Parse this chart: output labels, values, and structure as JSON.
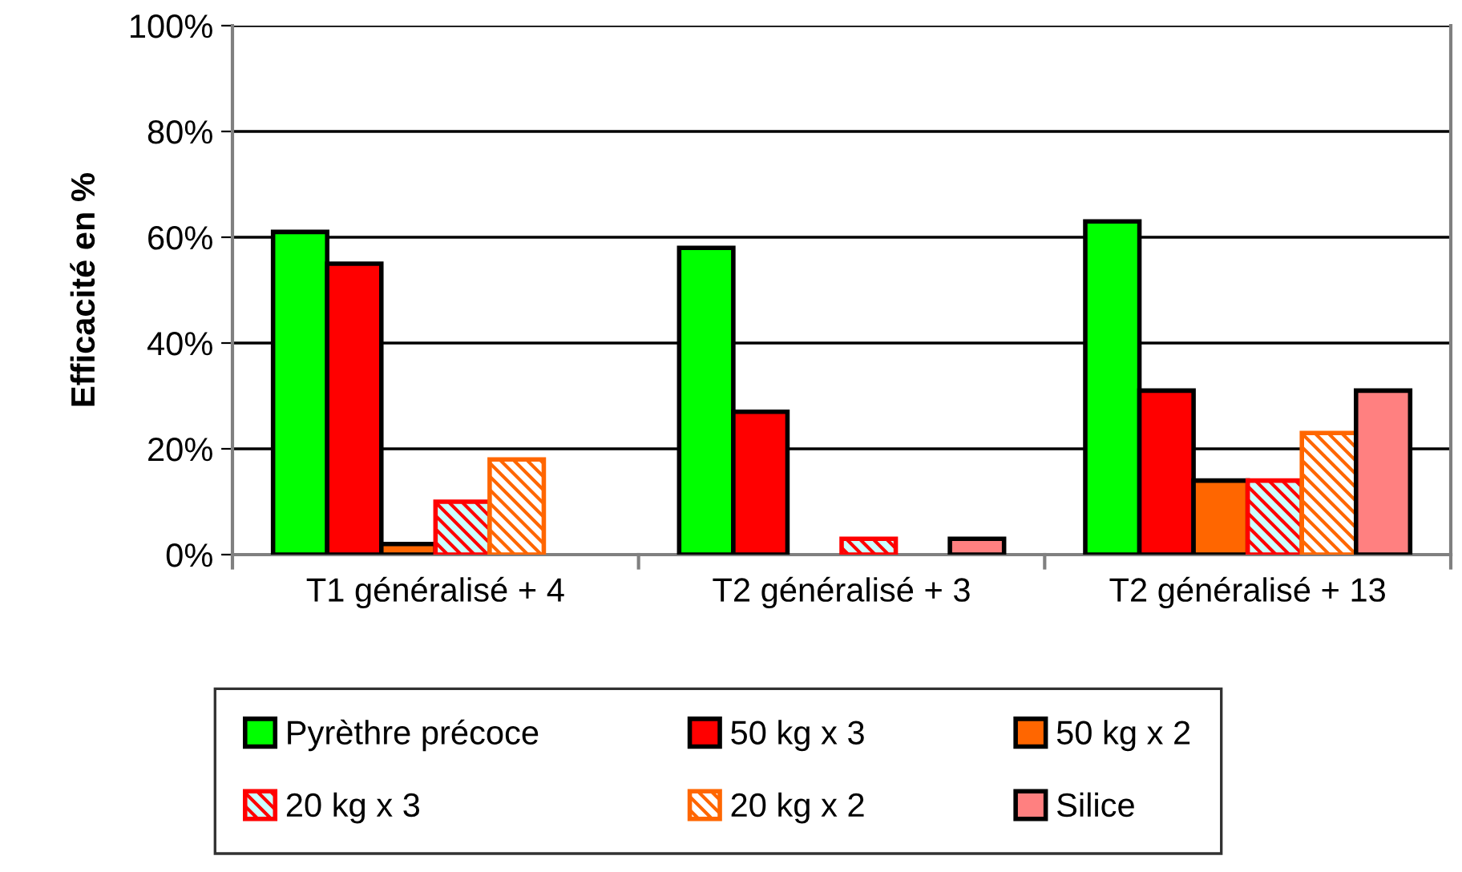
{
  "chart_data": {
    "type": "bar",
    "ylabel": "Efficacité en %",
    "categories": [
      "T1 généralisé + 4",
      "T2 généralisé + 3",
      "T2 généralisé + 13"
    ],
    "series": [
      {
        "name": "Pyrèthre précoce",
        "color": "#00ff00",
        "values": [
          61,
          58,
          63
        ]
      },
      {
        "name": "50 kg x 3",
        "color": "#ff0000",
        "values": [
          55,
          27,
          31
        ]
      },
      {
        "name": "50 kg x 2",
        "color": "#ff6600",
        "values": [
          2,
          0,
          14
        ]
      },
      {
        "name": "20 kg x 3",
        "color": "#ff0000",
        "values": [
          10,
          3,
          14
        ]
      },
      {
        "name": "20 kg x 2",
        "color": "#ff6600",
        "values": [
          18,
          0,
          23
        ]
      },
      {
        "name": "Silice",
        "color": "#ff8080",
        "values": [
          0,
          3,
          31
        ]
      }
    ],
    "ylim": [
      0,
      100
    ],
    "yticks": [
      {
        "value": 0,
        "label": "0%"
      },
      {
        "value": 20,
        "label": "20%"
      },
      {
        "value": 40,
        "label": "40%"
      },
      {
        "value": 60,
        "label": "60%"
      },
      {
        "value": 80,
        "label": "80%"
      },
      {
        "value": 100,
        "label": "100%"
      }
    ],
    "grid": "y",
    "legend": "bottom"
  }
}
